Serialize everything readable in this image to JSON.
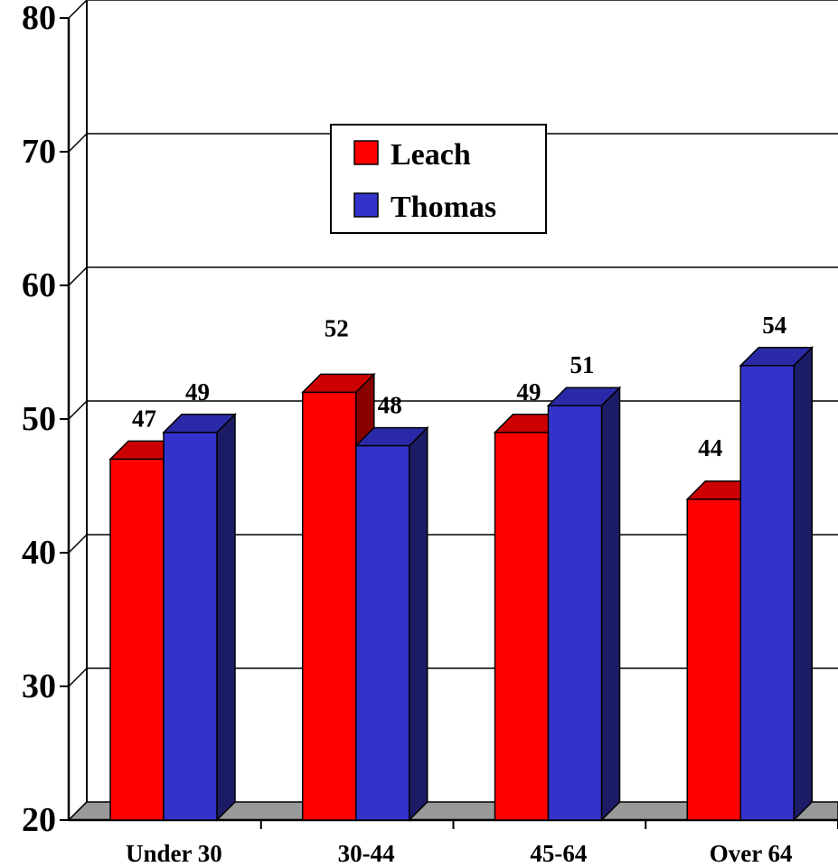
{
  "chart_data": {
    "type": "bar",
    "title": "",
    "xlabel": "",
    "ylabel": "",
    "categories": [
      "Under 30",
      "30-44",
      "45-64",
      "Over 64"
    ],
    "series": [
      {
        "name": "Leach",
        "values": [
          47,
          52,
          49,
          44
        ],
        "color": "#ff0000",
        "top_color": "#cc0000",
        "side_color": "#880000"
      },
      {
        "name": "Thomas",
        "values": [
          49,
          48,
          51,
          54
        ],
        "color": "#3333cc",
        "top_color": "#2a2aa8",
        "side_color": "#1c1c66"
      }
    ],
    "data_labels": [
      [
        "47",
        "52",
        "49",
        "44"
      ],
      [
        "49",
        "48",
        "51",
        "54"
      ]
    ],
    "ylim": [
      20,
      80
    ],
    "yticks": [
      "20",
      "30",
      "40",
      "50",
      "60",
      "70",
      "80"
    ],
    "grid": true,
    "legend_position": "top-center",
    "style": "3d-clustered-column",
    "floor_color": "#999999"
  }
}
